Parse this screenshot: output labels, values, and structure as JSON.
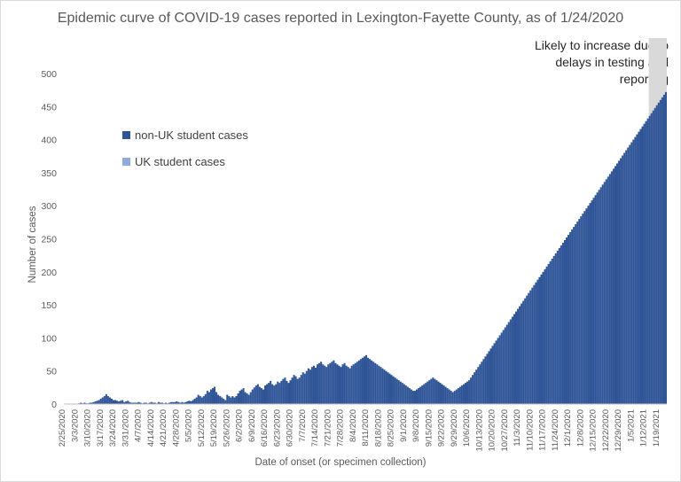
{
  "chart_data": {
    "type": "bar",
    "stacked": true,
    "title": "Epidemic curve of COVID-19 cases reported in Lexington-Fayette County, as of 1/24/2020",
    "xlabel": "Date of onset (or specimen collection)",
    "ylabel": "Number of cases",
    "ylim": [
      0,
      500
    ],
    "yticks": [
      0,
      50,
      100,
      150,
      200,
      250,
      300,
      350,
      400,
      450,
      500
    ],
    "x_tick_labels": [
      "2/25/2020",
      "3/3/2020",
      "3/10/2020",
      "3/17/2020",
      "3/24/2020",
      "3/31/2020",
      "4/7/2020",
      "4/14/2020",
      "4/21/2020",
      "4/28/2020",
      "5/5/2020",
      "5/12/2020",
      "5/19/2020",
      "5/26/2020",
      "6/2/2020",
      "6/9/2020",
      "6/16/2020",
      "6/23/2020",
      "6/30/2020",
      "7/7/2020",
      "7/14/2020",
      "7/21/2020",
      "7/28/2020",
      "8/4/2020",
      "8/11/2020",
      "8/18/2020",
      "8/25/2020",
      "9/1/2020",
      "9/8/2020",
      "9/15/2020",
      "9/22/2020",
      "9/29/2020",
      "10/6/2020",
      "10/13/2020",
      "10/20/2020",
      "10/27/2020",
      "11/3/2020",
      "11/10/2020",
      "11/17/2020",
      "11/24/2020",
      "12/1/2020",
      "12/8/2020",
      "12/15/2020",
      "12/22/2020",
      "12/29/2020",
      "1/5/2021",
      "1/12/2021",
      "1/19/2021"
    ],
    "annotation": "Likely to increase due to delays in testing and reporting",
    "shaded_region": {
      "from_day": 337,
      "to_day": 334
    },
    "grid": false,
    "legend_position": "left, upper middle",
    "series": [
      {
        "name": "non-UK student cases",
        "color": "#2f5597",
        "values": [
          0,
          0,
          0,
          0,
          0,
          0,
          0,
          0,
          1,
          2,
          1,
          2,
          1,
          1,
          2,
          2,
          3,
          4,
          5,
          6,
          8,
          10,
          12,
          15,
          12,
          10,
          8,
          6,
          6,
          5,
          4,
          5,
          6,
          3,
          4,
          5,
          3,
          2,
          2,
          2,
          2,
          3,
          2,
          1,
          2,
          2,
          1,
          2,
          3,
          2,
          2,
          1,
          3,
          2,
          2,
          1,
          2,
          1,
          2,
          3,
          3,
          3,
          4,
          3,
          2,
          3,
          2,
          3,
          4,
          5,
          4,
          6,
          8,
          10,
          14,
          12,
          10,
          12,
          15,
          20,
          18,
          22,
          24,
          26,
          18,
          14,
          12,
          10,
          8,
          6,
          14,
          12,
          10,
          12,
          10,
          12,
          16,
          20,
          22,
          24,
          18,
          16,
          14,
          18,
          22,
          25,
          28,
          30,
          26,
          24,
          22,
          28,
          30,
          32,
          35,
          30,
          28,
          30,
          34,
          32,
          35,
          38,
          40,
          35,
          32,
          36,
          40,
          44,
          42,
          38,
          40,
          44,
          48,
          46,
          50,
          54,
          52,
          56,
          58,
          55,
          60,
          62,
          64,
          60,
          58,
          56,
          60,
          62,
          64,
          66,
          62,
          60,
          58,
          56,
          60,
          62,
          58,
          56,
          54,
          58,
          60,
          62,
          64,
          66,
          68,
          70,
          72,
          74,
          70,
          68,
          66,
          64,
          62,
          60,
          58,
          56,
          54,
          52,
          50,
          48,
          46,
          44,
          42,
          40,
          38,
          36,
          34,
          32,
          30,
          28,
          26,
          24,
          22,
          20,
          20,
          22,
          24,
          26,
          28,
          30,
          32,
          34,
          36,
          38,
          40,
          38,
          36,
          34,
          32,
          30,
          28,
          26,
          24,
          22,
          20,
          18,
          20,
          22,
          24,
          26,
          28,
          30,
          32,
          34,
          36,
          40,
          44,
          48,
          52,
          56,
          60,
          64,
          68,
          72,
          76,
          80,
          84,
          88,
          92,
          96,
          100,
          104,
          108,
          112,
          116,
          120,
          124,
          128,
          132,
          136,
          140,
          144,
          148,
          152,
          156,
          160,
          164,
          168,
          172,
          176,
          180,
          184,
          188,
          192,
          196,
          200,
          204,
          208,
          212,
          216,
          220,
          224,
          228,
          232,
          236,
          240,
          244,
          248,
          252,
          256,
          260,
          264,
          268,
          272,
          276,
          280,
          284,
          288,
          292,
          296,
          300,
          304,
          308,
          312,
          316,
          320,
          324,
          328,
          332,
          336,
          340,
          344,
          348,
          352,
          356,
          360,
          364,
          368,
          372,
          376,
          380,
          384,
          388,
          392,
          396,
          400,
          404,
          408,
          412,
          416,
          420,
          424,
          428,
          432,
          436,
          440,
          444,
          448,
          452,
          456,
          460,
          464,
          468,
          472,
          476,
          480,
          484,
          488,
          492,
          496,
          500,
          504,
          508,
          512
        ]
      },
      {
        "name": "UK student cases",
        "color": "#8faadc",
        "values": []
      }
    ]
  }
}
